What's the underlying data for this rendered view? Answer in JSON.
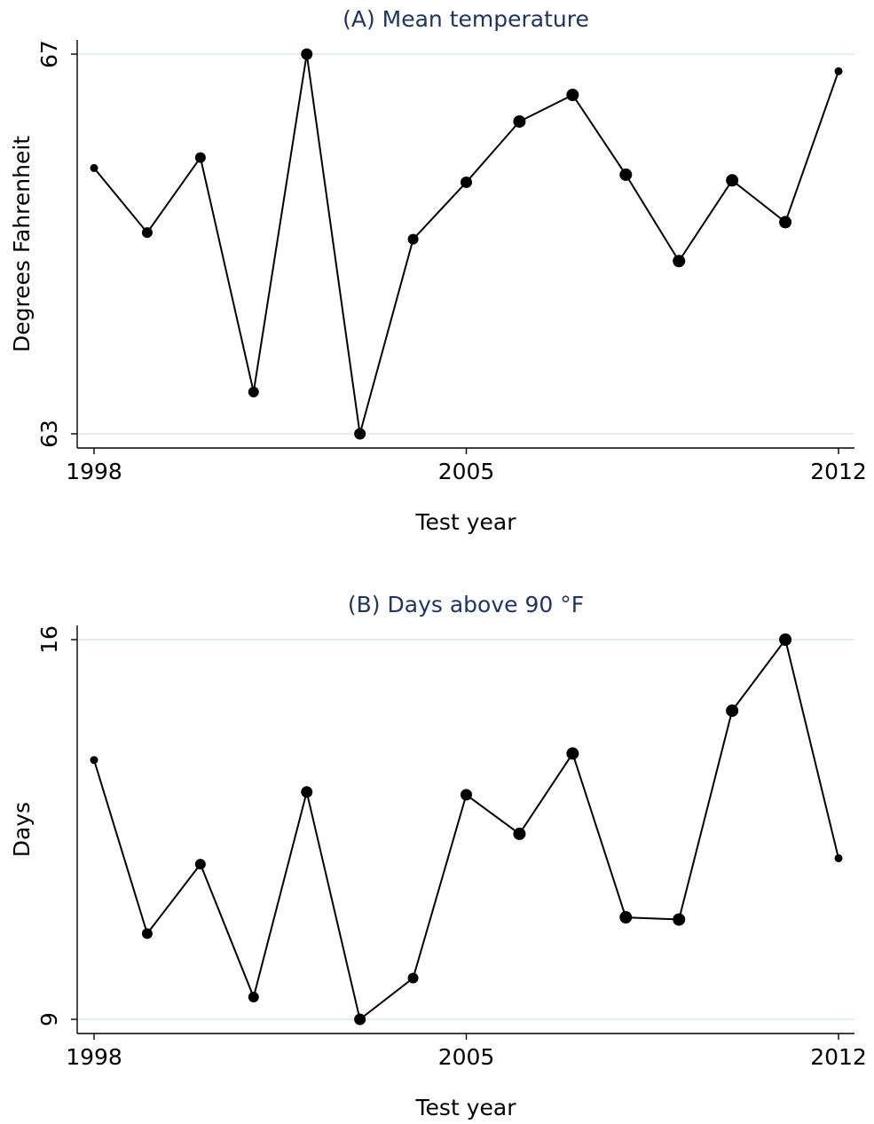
{
  "chart_data": [
    {
      "type": "line",
      "title": "(A) Mean temperature",
      "xlabel": "Test year",
      "ylabel": "Degrees Fahrenheit",
      "xlim": [
        1998,
        2012
      ],
      "ylim": [
        63,
        67
      ],
      "xticks": [
        "1998",
        "2005",
        "2012"
      ],
      "yticks": [
        "63",
        "67"
      ],
      "grid": true,
      "x": [
        1998,
        1999,
        2000,
        2001,
        2002,
        2003,
        2004,
        2005,
        2006,
        2007,
        2008,
        2009,
        2010,
        2011,
        2012
      ],
      "values": [
        65.8,
        65.12,
        65.91,
        63.44,
        67.0,
        63.0,
        65.05,
        65.65,
        66.29,
        66.57,
        65.73,
        64.82,
        65.67,
        65.23,
        66.82
      ],
      "marker_sizes": [
        4.5,
        6,
        6,
        6,
        6.5,
        6.5,
        6,
        6.5,
        7,
        7,
        7,
        7,
        7,
        7,
        4.5
      ]
    },
    {
      "type": "line",
      "title": "(B) Days above 90 °F",
      "xlabel": "Test year",
      "ylabel": "Days",
      "xlim": [
        1998,
        2012
      ],
      "ylim": [
        9,
        16
      ],
      "xticks": [
        "1998",
        "2005",
        "2012"
      ],
      "yticks": [
        "9",
        "16"
      ],
      "grid": true,
      "x": [
        1998,
        1999,
        2000,
        2001,
        2002,
        2003,
        2004,
        2005,
        2006,
        2007,
        2008,
        2009,
        2010,
        2011,
        2012
      ],
      "values": [
        13.78,
        10.58,
        11.86,
        9.41,
        13.19,
        9.0,
        9.76,
        13.14,
        12.42,
        13.9,
        10.88,
        10.84,
        14.69,
        16.0,
        11.97
      ],
      "marker_sizes": [
        4.5,
        6,
        6,
        6,
        6.5,
        6.5,
        6,
        6.5,
        7,
        7,
        7,
        7,
        7,
        7,
        4.5
      ]
    }
  ]
}
